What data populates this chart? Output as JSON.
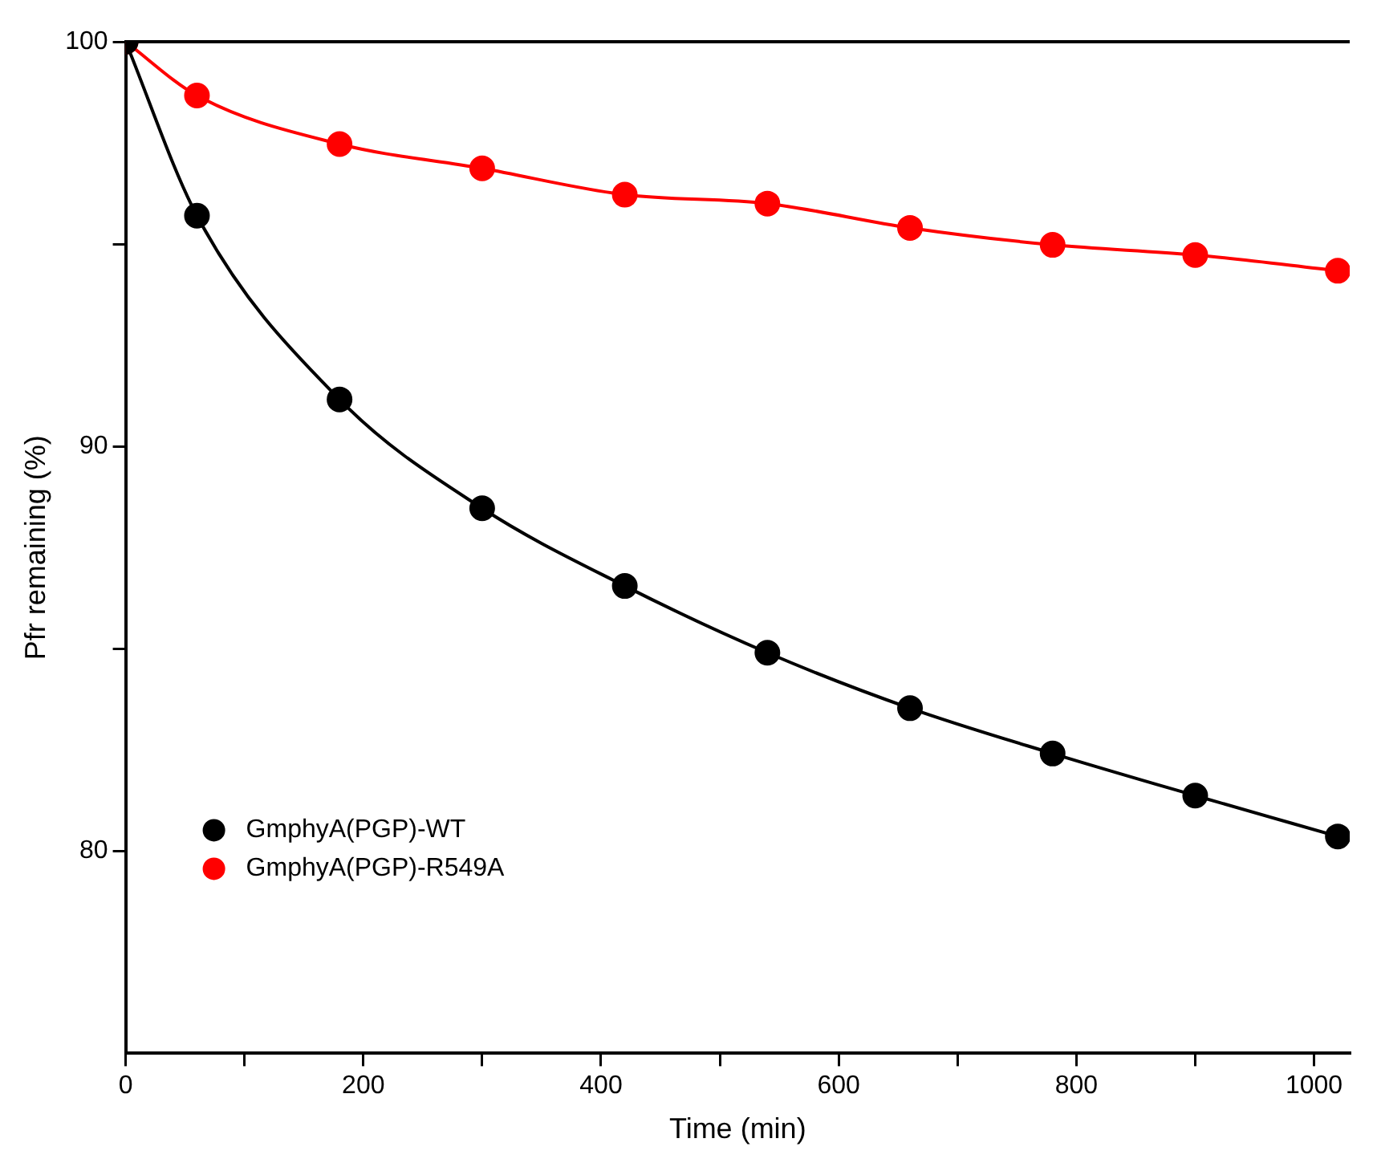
{
  "chart_data": {
    "type": "line",
    "xlabel": "Time (min)",
    "ylabel": "Pfr remaining (%)",
    "x": [
      0,
      60,
      180,
      300,
      420,
      540,
      660,
      780,
      900,
      1020
    ],
    "series": [
      {
        "name": "GmphyA(PGP)-WT",
        "color": "#000000",
        "values": [
          100,
          95.7,
          91.16,
          88.47,
          86.55,
          84.9,
          83.53,
          82.41,
          81.37,
          80.36
        ]
      },
      {
        "name": "GmphyA(PGP)-R549A",
        "color": "#ff0000",
        "values": [
          100,
          98.67,
          97.47,
          96.87,
          96.22,
          96.0,
          95.4,
          94.98,
          94.73,
          94.34
        ]
      }
    ],
    "xlim": [
      0,
      1030
    ],
    "ylim": [
      75,
      100
    ],
    "xticks": [
      0,
      {
        "value": 100,
        "label": null
      },
      200,
      {
        "value": 300,
        "label": null
      },
      400,
      {
        "value": 500,
        "label": null
      },
      600,
      {
        "value": 700,
        "label": null
      },
      800,
      {
        "value": 900,
        "label": null
      },
      1000
    ],
    "yticks": [
      80,
      {
        "value": 85,
        "label": null
      },
      90,
      {
        "value": 95,
        "label": null
      },
      100
    ],
    "grid": false,
    "legend": "bottom left",
    "marker": "circle",
    "line_style": "solid"
  }
}
